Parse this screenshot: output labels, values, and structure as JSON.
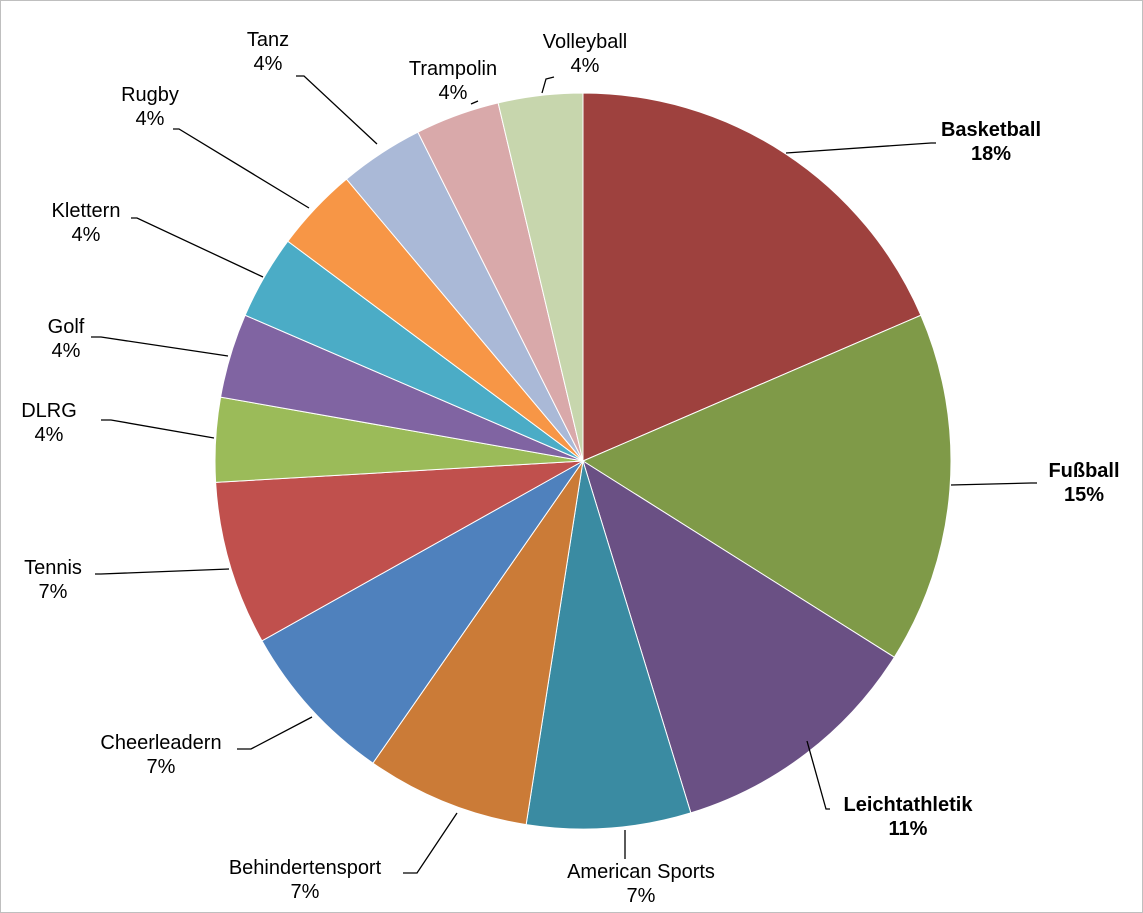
{
  "chart_data": {
    "type": "pie",
    "title": "",
    "start_angle_deg": 0,
    "direction": "clockwise",
    "slices": [
      {
        "label": "Basketball",
        "percent_label": "18%",
        "value": 18,
        "color": "#9E413E",
        "emphasis": true
      },
      {
        "label": "Fußball",
        "percent_label": "15%",
        "value": 15,
        "color": "#7F9A48",
        "emphasis": true
      },
      {
        "label": "Leichtathletik",
        "percent_label": "11%",
        "value": 11,
        "color": "#6A5084",
        "emphasis": true
      },
      {
        "label": "American Sports",
        "percent_label": "7%",
        "value": 7,
        "color": "#3A8BA2",
        "emphasis": false
      },
      {
        "label": "Behindertensport",
        "percent_label": "7%",
        "value": 7,
        "color": "#CB7B37",
        "emphasis": false
      },
      {
        "label": "Cheerleadern",
        "percent_label": "7%",
        "value": 7,
        "color": "#4F81BD",
        "emphasis": false
      },
      {
        "label": "Tennis",
        "percent_label": "7%",
        "value": 7,
        "color": "#C0504D",
        "emphasis": false
      },
      {
        "label": "DLRG",
        "percent_label": "4%",
        "value": 3.6,
        "color": "#9BBB59",
        "emphasis": false
      },
      {
        "label": "Golf",
        "percent_label": "4%",
        "value": 3.6,
        "color": "#8064A2",
        "emphasis": false
      },
      {
        "label": "Klettern",
        "percent_label": "4%",
        "value": 3.6,
        "color": "#4BACC6",
        "emphasis": false
      },
      {
        "label": "Rugby",
        "percent_label": "4%",
        "value": 3.6,
        "color": "#F79646",
        "emphasis": false
      },
      {
        "label": "Tanz",
        "percent_label": "4%",
        "value": 3.6,
        "color": "#AAB9D7",
        "emphasis": false
      },
      {
        "label": "Trampolin",
        "percent_label": "4%",
        "value": 3.6,
        "color": "#D9A9AA",
        "emphasis": false
      },
      {
        "label": "Volleyball",
        "percent_label": "4%",
        "value": 3.6,
        "color": "#C7D6AD",
        "emphasis": false
      }
    ],
    "legend": "none",
    "data_labels": "outside-with-leader-lines"
  }
}
